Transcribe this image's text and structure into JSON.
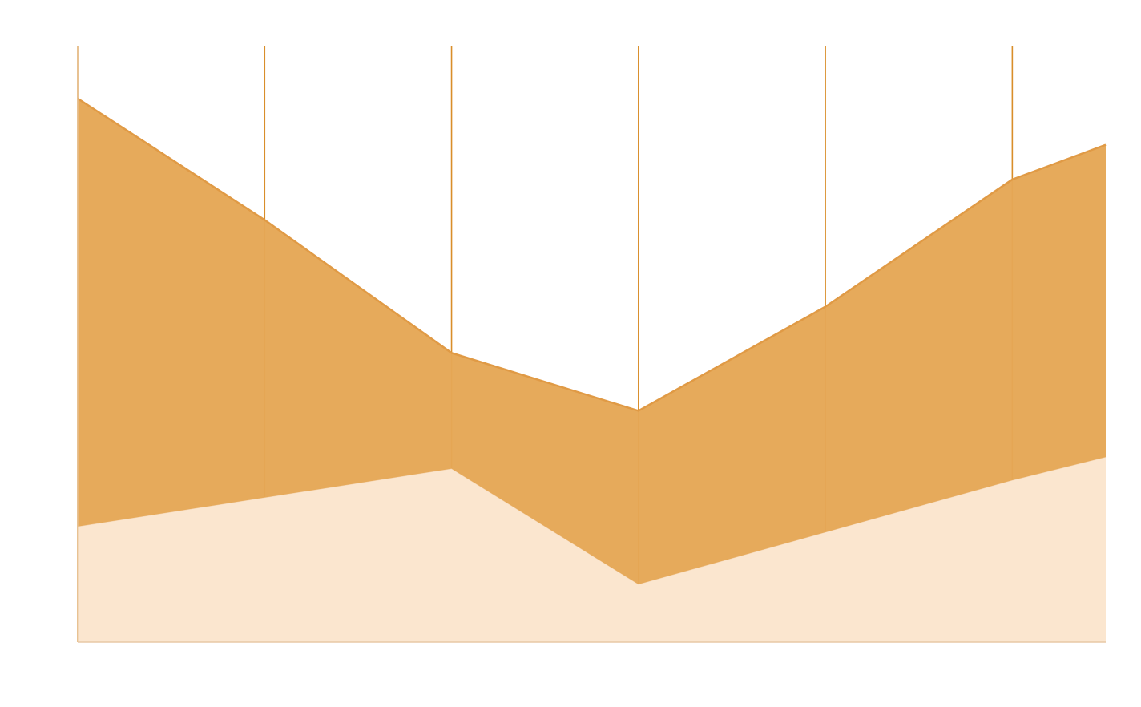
{
  "chart_data": {
    "type": "area",
    "stacked": true,
    "x": [
      0,
      1,
      2,
      3,
      4,
      5,
      5.5
    ],
    "series": [
      {
        "values": [
          20,
          25,
          30,
          10,
          19,
          28,
          32
        ],
        "color": "#fbe6cf"
      },
      {
        "values": [
          74,
          48,
          20,
          30,
          39,
          52,
          54
        ],
        "color": "#e5a756"
      }
    ],
    "xlim": [
      0,
      5.5
    ],
    "ylim": [
      0,
      103
    ],
    "grid": {
      "vertical": true,
      "horizontal": false
    },
    "gridline_color": "#d98e2a",
    "legend": "none"
  }
}
